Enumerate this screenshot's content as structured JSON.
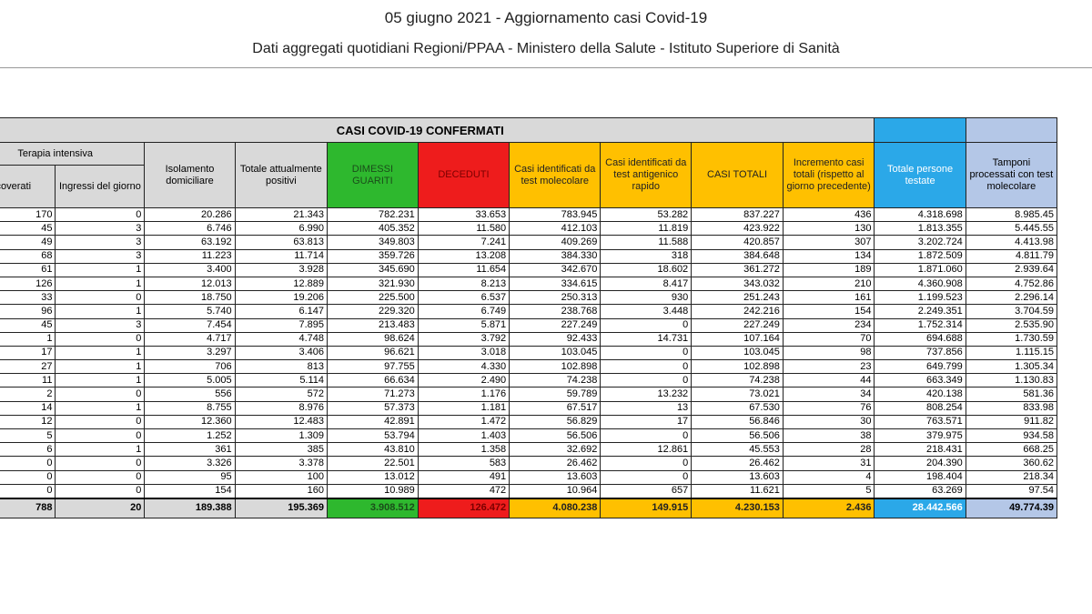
{
  "header": {
    "title": "05 giugno 2021 - Aggiornamento casi Covid-19",
    "subtitle": "Dati aggregati quotidiani Regioni/PPAA - Ministero della Salute - Istituto Superiore di Sanità"
  },
  "table": {
    "group_title": "CASI COVID-19 CONFERMATI",
    "terapia_group": "Terapia intensiva",
    "columns": [
      "ricoverati",
      "Ingressi del giorno",
      "Isolamento domiciliare",
      "Totale attualmente positivi",
      "DIMESSI GUARITI",
      "DECEDUTI",
      "Casi identificati da test molecolare",
      "Casi identificati da test antigenico rapido",
      "CASI TOTALI",
      "Incremento casi totali (rispetto al giorno precedente)",
      "Totale persone testate",
      "Tamponi processati con test molecolare"
    ],
    "rows": [
      [
        "170",
        "0",
        "20.286",
        "21.343",
        "782.231",
        "33.653",
        "783.945",
        "53.282",
        "837.227",
        "436",
        "4.318.698",
        "8.985.45"
      ],
      [
        "45",
        "3",
        "6.746",
        "6.990",
        "405.352",
        "11.580",
        "412.103",
        "11.819",
        "423.922",
        "130",
        "1.813.355",
        "5.445.55"
      ],
      [
        "49",
        "3",
        "63.192",
        "63.813",
        "349.803",
        "7.241",
        "409.269",
        "11.588",
        "420.857",
        "307",
        "3.202.724",
        "4.413.98"
      ],
      [
        "68",
        "3",
        "11.223",
        "11.714",
        "359.726",
        "13.208",
        "384.330",
        "318",
        "384.648",
        "134",
        "1.872.509",
        "4.811.79"
      ],
      [
        "61",
        "1",
        "3.400",
        "3.928",
        "345.690",
        "11.654",
        "342.670",
        "18.602",
        "361.272",
        "189",
        "1.871.060",
        "2.939.64"
      ],
      [
        "126",
        "1",
        "12.013",
        "12.889",
        "321.930",
        "8.213",
        "334.615",
        "8.417",
        "343.032",
        "210",
        "4.360.908",
        "4.752.86"
      ],
      [
        "33",
        "0",
        "18.750",
        "19.206",
        "225.500",
        "6.537",
        "250.313",
        "930",
        "251.243",
        "161",
        "1.199.523",
        "2.296.14"
      ],
      [
        "96",
        "1",
        "5.740",
        "6.147",
        "229.320",
        "6.749",
        "238.768",
        "3.448",
        "242.216",
        "154",
        "2.249.351",
        "3.704.59"
      ],
      [
        "45",
        "3",
        "7.454",
        "7.895",
        "213.483",
        "5.871",
        "227.249",
        "0",
        "227.249",
        "234",
        "1.752.314",
        "2.535.90"
      ],
      [
        "1",
        "0",
        "4.717",
        "4.748",
        "98.624",
        "3.792",
        "92.433",
        "14.731",
        "107.164",
        "70",
        "694.688",
        "1.730.59"
      ],
      [
        "17",
        "1",
        "3.297",
        "3.406",
        "96.621",
        "3.018",
        "103.045",
        "0",
        "103.045",
        "98",
        "737.856",
        "1.115.15"
      ],
      [
        "27",
        "1",
        "706",
        "813",
        "97.755",
        "4.330",
        "102.898",
        "0",
        "102.898",
        "23",
        "649.799",
        "1.305.34"
      ],
      [
        "11",
        "1",
        "5.005",
        "5.114",
        "66.634",
        "2.490",
        "74.238",
        "0",
        "74.238",
        "44",
        "663.349",
        "1.130.83"
      ],
      [
        "2",
        "0",
        "556",
        "572",
        "71.273",
        "1.176",
        "59.789",
        "13.232",
        "73.021",
        "34",
        "420.138",
        "581.36"
      ],
      [
        "14",
        "1",
        "8.755",
        "8.976",
        "57.373",
        "1.181",
        "67.517",
        "13",
        "67.530",
        "76",
        "808.254",
        "833.98"
      ],
      [
        "12",
        "0",
        "12.360",
        "12.483",
        "42.891",
        "1.472",
        "56.829",
        "17",
        "56.846",
        "30",
        "763.571",
        "911.82"
      ],
      [
        "5",
        "0",
        "1.252",
        "1.309",
        "53.794",
        "1.403",
        "56.506",
        "0",
        "56.506",
        "38",
        "379.975",
        "934.58"
      ],
      [
        "6",
        "1",
        "361",
        "385",
        "43.810",
        "1.358",
        "32.692",
        "12.861",
        "45.553",
        "28",
        "218.431",
        "668.25"
      ],
      [
        "0",
        "0",
        "3.326",
        "3.378",
        "22.501",
        "583",
        "26.462",
        "0",
        "26.462",
        "31",
        "204.390",
        "360.62"
      ],
      [
        "0",
        "0",
        "95",
        "100",
        "13.012",
        "491",
        "13.603",
        "0",
        "13.603",
        "4",
        "198.404",
        "218.34"
      ],
      [
        "0",
        "0",
        "154",
        "160",
        "10.989",
        "472",
        "10.964",
        "657",
        "11.621",
        "5",
        "63.269",
        "97.54"
      ]
    ],
    "totals": [
      "788",
      "20",
      "189.388",
      "195.369",
      "3.908.512",
      "126.472",
      "4.080.238",
      "149.915",
      "4.230.153",
      "2.436",
      "28.442.566",
      "49.774.39"
    ]
  },
  "colors": {
    "dimessi": "#2eb82e",
    "deceduti": "#ee1c1c",
    "casi": "#ffc000",
    "persone_testate": "#2ba8e8",
    "tamponi": "#b4c7e7",
    "grid_header": "#d9d9d9"
  }
}
